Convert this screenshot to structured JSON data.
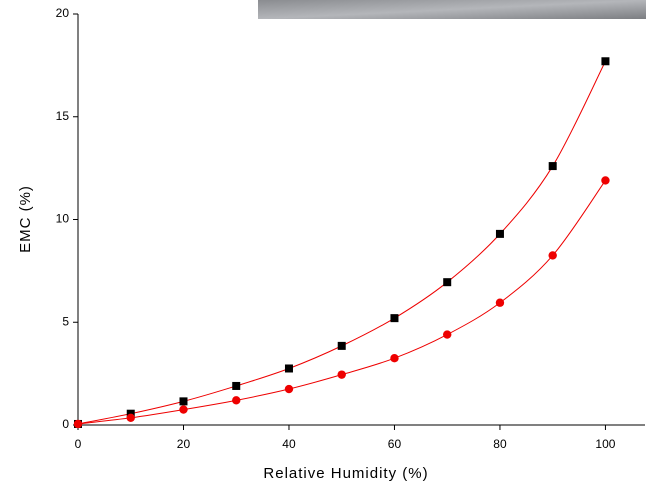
{
  "chart_data": {
    "type": "scatter",
    "x_label": "Relative Humidity (%)",
    "y_label": "EMC (%)",
    "x": [
      0,
      10,
      20,
      30,
      40,
      50,
      60,
      70,
      80,
      90,
      100
    ],
    "series": [
      {
        "color": "#000000",
        "marker": "square",
        "values": [
          0.05,
          0.55,
          1.15,
          1.9,
          2.75,
          3.85,
          5.2,
          6.95,
          9.3,
          12.6,
          17.7
        ]
      },
      {
        "color": "#ee0000",
        "marker": "circle",
        "values": [
          0.05,
          0.35,
          0.75,
          1.2,
          1.75,
          2.45,
          3.25,
          4.4,
          5.95,
          8.25,
          11.9
        ]
      }
    ],
    "fit_color": "#ee0000",
    "xlim": [
      0,
      107.5
    ],
    "ylim": [
      0,
      20
    ],
    "xticks": [
      0,
      20,
      40,
      60,
      80,
      100
    ],
    "yticks": [
      0,
      5,
      10,
      15,
      20
    ]
  }
}
